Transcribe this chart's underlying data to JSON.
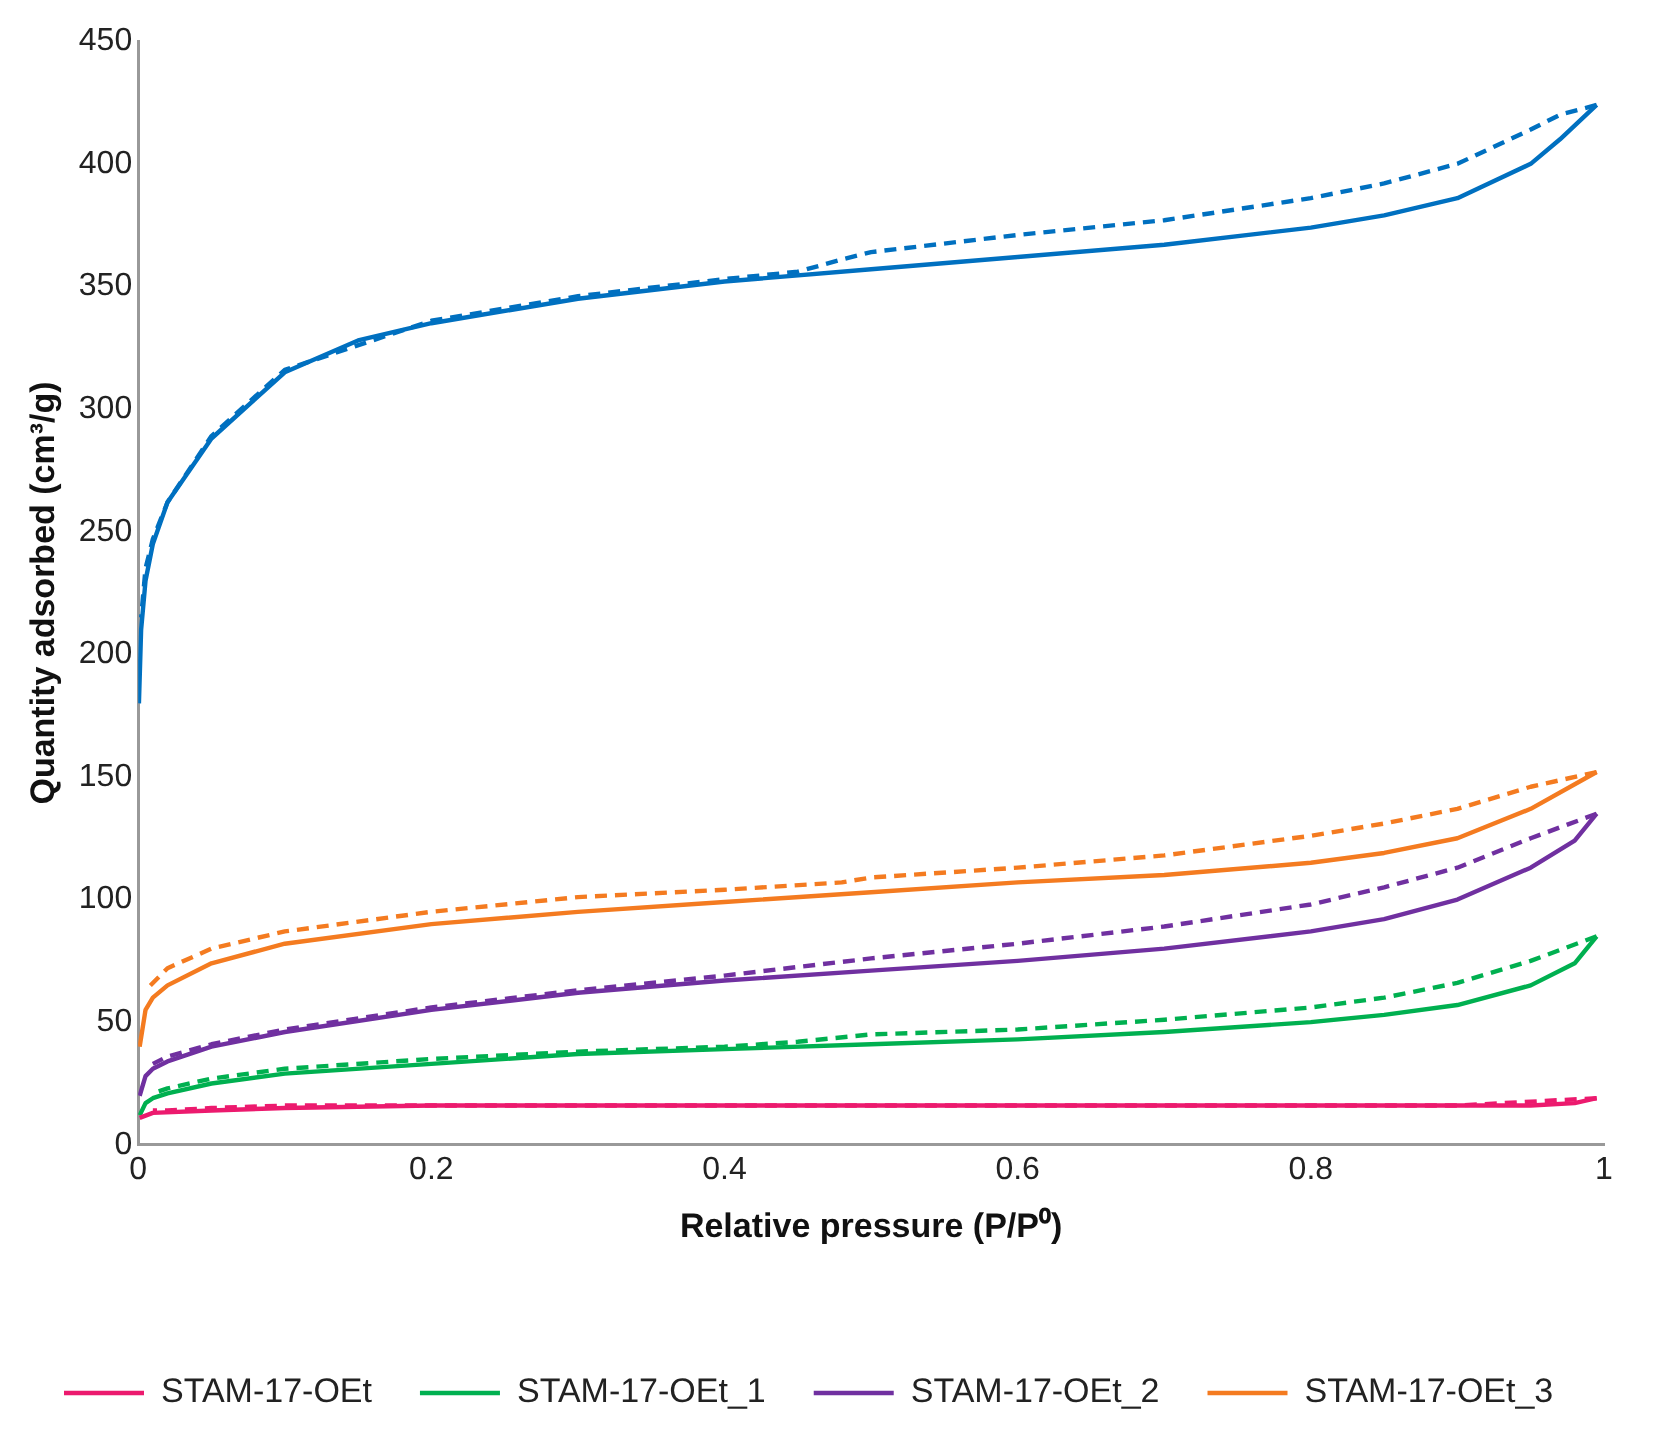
{
  "chart_data": {
    "type": "line",
    "xlabel": "Relative pressure (P/P⁰)",
    "ylabel": "Quantity adsorbed (cm³/g)",
    "xlim": [
      0,
      1
    ],
    "xticks": [
      0,
      {
        "value": 0.2,
        "label": "0.2"
      },
      {
        "value": 0.4,
        "label": "0.4"
      },
      {
        "value": 0.6,
        "label": "0.6"
      },
      {
        "value": 0.8,
        "label": "0.8"
      },
      1
    ],
    "ylim": [
      0,
      450
    ],
    "yticks": [
      0,
      50,
      100,
      150,
      200,
      250,
      300,
      350,
      400,
      450
    ],
    "grid": false,
    "legend": "bottom",
    "marker": "none",
    "series": [
      {
        "name": "STAM-17-OEt",
        "color": "#ec1a6e",
        "line_style": "solid",
        "x": [
          0.001,
          0.01,
          0.05,
          0.1,
          0.2,
          0.4,
          0.6,
          0.8,
          0.9,
          0.95,
          0.98,
          0.995
        ],
        "values": [
          11,
          13,
          14,
          15,
          16,
          16,
          16,
          16,
          16,
          16,
          17,
          19
        ]
      },
      {
        "name": "STAM-17-OEt_1",
        "color": "#00b050",
        "line_style": "solid",
        "x": [
          0.001,
          0.005,
          0.01,
          0.02,
          0.05,
          0.1,
          0.2,
          0.3,
          0.4,
          0.5,
          0.6,
          0.7,
          0.8,
          0.85,
          0.9,
          0.95,
          0.98,
          0.995
        ],
        "values": [
          12,
          17,
          19,
          21,
          25,
          29,
          33,
          37,
          39,
          41,
          43,
          46,
          50,
          53,
          57,
          65,
          74,
          85
        ]
      },
      {
        "name": "STAM-17-OEt_2",
        "color": "#7030a0",
        "line_style": "solid",
        "x": [
          0.001,
          0.005,
          0.01,
          0.02,
          0.05,
          0.1,
          0.2,
          0.3,
          0.4,
          0.5,
          0.6,
          0.7,
          0.8,
          0.85,
          0.9,
          0.95,
          0.98,
          0.995
        ],
        "values": [
          20,
          28,
          31,
          34,
          40,
          46,
          55,
          62,
          67,
          71,
          75,
          80,
          87,
          92,
          100,
          113,
          124,
          135
        ]
      },
      {
        "name": "STAM-17-OEt_3",
        "color": "#f47b20",
        "line_style": "solid",
        "x": [
          0.001,
          0.005,
          0.01,
          0.02,
          0.05,
          0.1,
          0.2,
          0.3,
          0.4,
          0.5,
          0.6,
          0.7,
          0.8,
          0.85,
          0.9,
          0.95,
          0.995
        ],
        "values": [
          40,
          55,
          60,
          65,
          74,
          82,
          90,
          95,
          99,
          103,
          107,
          110,
          115,
          119,
          125,
          137,
          152
        ]
      },
      {
        "color": "#0070c0",
        "line_style": "solid",
        "x": [
          0.0005,
          0.002,
          0.005,
          0.01,
          0.02,
          0.05,
          0.1,
          0.15,
          0.2,
          0.3,
          0.4,
          0.5,
          0.6,
          0.7,
          0.8,
          0.85,
          0.9,
          0.95,
          0.97,
          0.995
        ],
        "values": [
          180,
          210,
          230,
          245,
          262,
          288,
          315,
          328,
          335,
          345,
          352,
          357,
          362,
          367,
          374,
          379,
          386,
          400,
          410,
          424
        ]
      },
      {
        "color": "#ec1a6e",
        "line_style": "dashed",
        "x": [
          0.995,
          0.9,
          0.6,
          0.4,
          0.2,
          0.1,
          0.05,
          0.02,
          0.01
        ],
        "values": [
          19,
          16,
          16,
          16,
          16,
          16,
          15,
          14,
          14
        ]
      },
      {
        "color": "#00b050",
        "line_style": "dashed",
        "x": [
          0.995,
          0.95,
          0.9,
          0.85,
          0.8,
          0.7,
          0.6,
          0.5,
          0.45,
          0.4,
          0.3,
          0.2,
          0.1,
          0.05,
          0.02,
          0.01
        ],
        "values": [
          85,
          75,
          66,
          60,
          56,
          51,
          47,
          45,
          42,
          40,
          38,
          35,
          31,
          27,
          23,
          21
        ]
      },
      {
        "color": "#7030a0",
        "line_style": "dashed",
        "x": [
          0.995,
          0.95,
          0.9,
          0.85,
          0.8,
          0.7,
          0.6,
          0.5,
          0.4,
          0.3,
          0.2,
          0.1,
          0.05,
          0.02,
          0.01
        ],
        "values": [
          135,
          125,
          113,
          105,
          98,
          89,
          82,
          76,
          69,
          63,
          56,
          47,
          41,
          36,
          33
        ]
      },
      {
        "color": "#f47b20",
        "line_style": "dashed",
        "x": [
          0.995,
          0.95,
          0.9,
          0.85,
          0.8,
          0.7,
          0.6,
          0.5,
          0.48,
          0.4,
          0.3,
          0.2,
          0.1,
          0.05,
          0.02,
          0.01,
          0.005
        ],
        "values": [
          152,
          146,
          137,
          131,
          126,
          118,
          113,
          109,
          107,
          104,
          101,
          95,
          87,
          80,
          72,
          66,
          63
        ]
      },
      {
        "color": "#0070c0",
        "line_style": "dashed",
        "x": [
          0.995,
          0.97,
          0.95,
          0.9,
          0.85,
          0.8,
          0.7,
          0.6,
          0.5,
          0.48,
          0.45,
          0.4,
          0.3,
          0.2,
          0.1,
          0.05,
          0.02,
          0.01,
          0.005,
          0.002
        ],
        "values": [
          424,
          420,
          414,
          400,
          392,
          386,
          377,
          371,
          364,
          361,
          356,
          353,
          346,
          336,
          316,
          289,
          262,
          247,
          235,
          215
        ]
      }
    ]
  }
}
